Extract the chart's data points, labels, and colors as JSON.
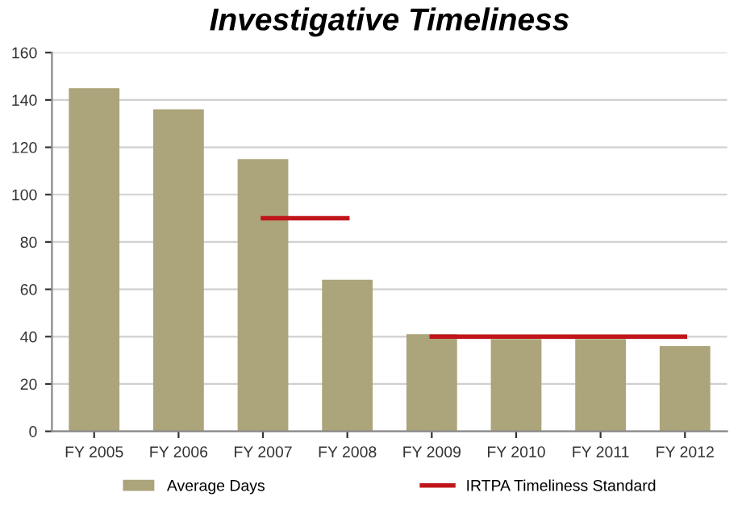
{
  "chart_data": {
    "type": "bar",
    "title": "Investigative Timeliness",
    "categories": [
      "FY 2005",
      "FY 2006",
      "FY 2007",
      "FY 2008",
      "FY 2009",
      "FY 2010",
      "FY 2011",
      "FY 2012"
    ],
    "series": [
      {
        "name": "Average Days",
        "color": "#aca47a",
        "values": [
          145,
          136,
          115,
          64,
          41,
          39,
          39,
          36
        ]
      },
      {
        "name": "IRTPA Timeliness Standard",
        "type": "line",
        "color": "#c0161b",
        "values": [
          null,
          null,
          90,
          90,
          null,
          null,
          null,
          null
        ]
      },
      {
        "type": "line",
        "color": "#c0161b",
        "values": [
          null,
          null,
          null,
          null,
          40,
          40,
          40,
          40
        ]
      }
    ],
    "ylim": [
      0,
      160
    ],
    "yticks": [
      0,
      20,
      40,
      60,
      80,
      100,
      120,
      140,
      160
    ],
    "grid": "y",
    "legend": "bottom"
  }
}
